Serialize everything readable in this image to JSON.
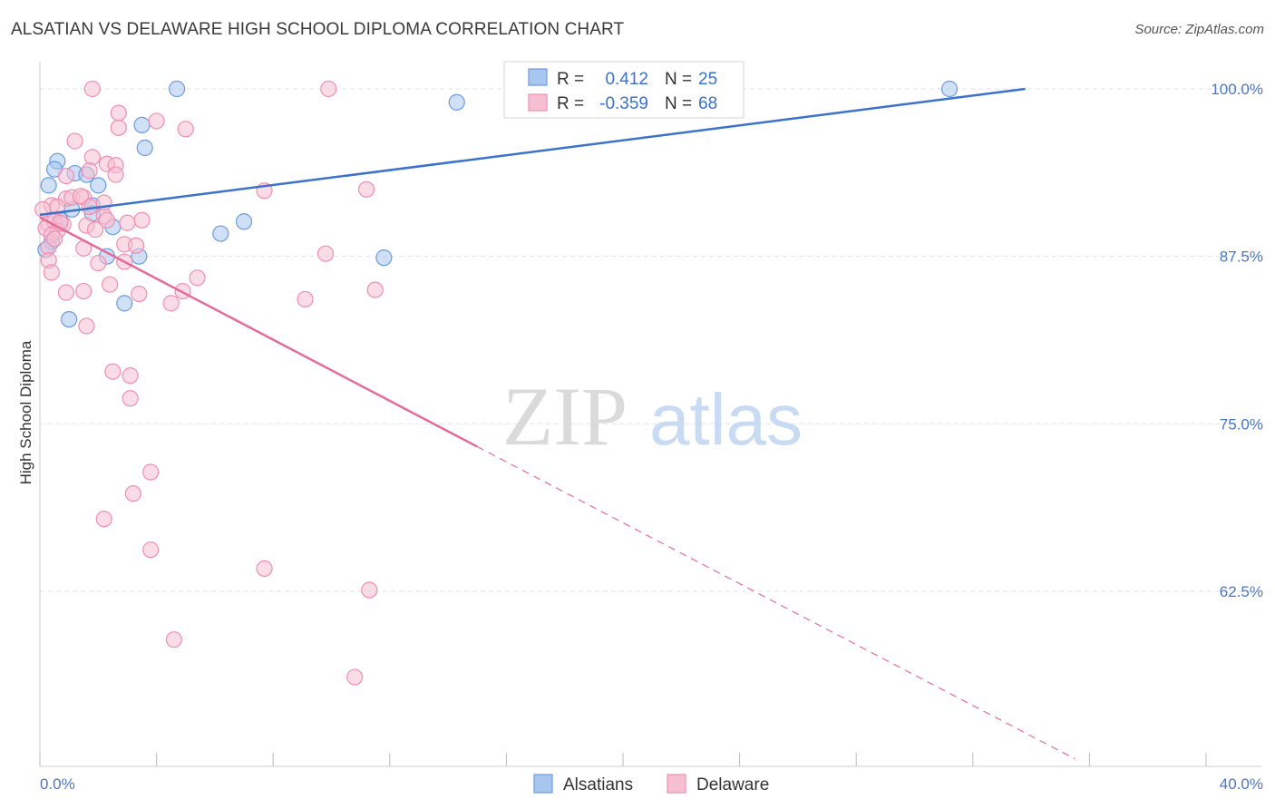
{
  "header": {
    "title": "ALSATIAN VS DELAWARE HIGH SCHOOL DIPLOMA CORRELATION CHART",
    "source": "Source: ZipAtlas.com"
  },
  "watermark": {
    "zip": "ZIP",
    "atlas": "atlas"
  },
  "colors": {
    "blue_fill": "#a9c6ef",
    "blue_stroke": "#6b9be0",
    "blue_line": "#3a72cc",
    "pink_fill": "#f6bfd1",
    "pink_stroke": "#ef8fb0",
    "pink_line": "#e56b9a",
    "tick_text": "#4a76c6",
    "grid": "#e3e3e3"
  },
  "legend": {
    "rows": [
      {
        "r_label": "R =",
        "r_value": "0.412",
        "n_label": "N =",
        "n_value": "25",
        "series": "blue"
      },
      {
        "r_label": "R =",
        "r_value": "-0.359",
        "n_label": "N =",
        "n_value": "68",
        "series": "pink"
      }
    ]
  },
  "chart_data": {
    "type": "scatter",
    "title": "ALSATIAN VS DELAWARE HIGH SCHOOL DIPLOMA CORRELATION CHART",
    "xlabel": "",
    "ylabel": "High School Diploma",
    "xlim": [
      0,
      40
    ],
    "ylim": [
      50,
      101
    ],
    "x_tick_labels": [
      "0.0%",
      "40.0%"
    ],
    "y_ticks": [
      {
        "value": 100,
        "label": "100.0%"
      },
      {
        "value": 87.5,
        "label": "87.5%"
      },
      {
        "value": 75,
        "label": "75.0%"
      },
      {
        "value": 62.5,
        "label": "62.5%"
      }
    ],
    "grid": true,
    "legend_placement": "top-center",
    "series": [
      {
        "name": "Alsatians",
        "color": "blue",
        "points": [
          [
            0.3,
            92.8
          ],
          [
            0.6,
            94.6
          ],
          [
            0.5,
            94.0
          ],
          [
            0.7,
            90.2
          ],
          [
            0.4,
            88.6
          ],
          [
            1.2,
            93.7
          ],
          [
            1.6,
            93.6
          ],
          [
            2.0,
            92.8
          ],
          [
            1.8,
            91.3
          ],
          [
            1.8,
            90.7
          ],
          [
            2.5,
            89.7
          ],
          [
            2.3,
            87.5
          ],
          [
            3.6,
            95.6
          ],
          [
            3.5,
            97.3
          ],
          [
            3.4,
            87.5
          ],
          [
            2.9,
            84.0
          ],
          [
            1.0,
            82.8
          ],
          [
            4.7,
            100.0
          ],
          [
            6.2,
            89.2
          ],
          [
            7.0,
            90.1
          ],
          [
            11.8,
            87.4
          ],
          [
            14.3,
            99.0
          ],
          [
            31.2,
            100.0
          ],
          [
            0.2,
            88.0
          ],
          [
            1.1,
            91.0
          ]
        ],
        "trend": {
          "x": [
            0,
            33.8
          ],
          "y": [
            90.6,
            100.0
          ]
        }
      },
      {
        "name": "Delaware",
        "color": "pink",
        "points": [
          [
            1.8,
            100.0
          ],
          [
            9.9,
            100.0
          ],
          [
            2.7,
            98.2
          ],
          [
            4.0,
            97.6
          ],
          [
            2.7,
            97.1
          ],
          [
            5.0,
            97.0
          ],
          [
            1.2,
            96.1
          ],
          [
            1.8,
            94.9
          ],
          [
            2.3,
            94.4
          ],
          [
            2.6,
            94.3
          ],
          [
            0.9,
            93.5
          ],
          [
            1.7,
            93.9
          ],
          [
            2.6,
            93.6
          ],
          [
            7.7,
            92.4
          ],
          [
            11.2,
            92.5
          ],
          [
            0.4,
            91.3
          ],
          [
            0.9,
            91.8
          ],
          [
            1.1,
            91.9
          ],
          [
            1.5,
            91.9
          ],
          [
            1.7,
            91.2
          ],
          [
            0.6,
            91.2
          ],
          [
            2.2,
            90.5
          ],
          [
            2.3,
            90.2
          ],
          [
            3.5,
            90.2
          ],
          [
            0.3,
            89.9
          ],
          [
            0.5,
            90.1
          ],
          [
            0.8,
            89.9
          ],
          [
            1.6,
            89.8
          ],
          [
            0.2,
            89.6
          ],
          [
            0.6,
            89.4
          ],
          [
            0.4,
            89.1
          ],
          [
            0.3,
            88.2
          ],
          [
            1.5,
            88.1
          ],
          [
            2.9,
            88.4
          ],
          [
            3.3,
            88.3
          ],
          [
            9.8,
            87.7
          ],
          [
            0.3,
            87.2
          ],
          [
            0.4,
            86.3
          ],
          [
            2.0,
            87.0
          ],
          [
            2.9,
            87.1
          ],
          [
            5.4,
            85.9
          ],
          [
            2.4,
            85.4
          ],
          [
            1.5,
            84.9
          ],
          [
            0.9,
            84.8
          ],
          [
            3.4,
            84.7
          ],
          [
            4.9,
            84.9
          ],
          [
            11.5,
            85.0
          ],
          [
            4.5,
            84.0
          ],
          [
            9.1,
            84.3
          ],
          [
            1.6,
            82.3
          ],
          [
            2.5,
            78.9
          ],
          [
            3.1,
            78.6
          ],
          [
            3.1,
            76.9
          ],
          [
            3.8,
            71.4
          ],
          [
            3.2,
            69.8
          ],
          [
            2.2,
            67.9
          ],
          [
            3.8,
            65.6
          ],
          [
            7.7,
            64.2
          ],
          [
            11.3,
            62.6
          ],
          [
            4.6,
            58.9
          ],
          [
            10.8,
            56.1
          ],
          [
            0.1,
            91.0
          ],
          [
            0.7,
            90.0
          ],
          [
            2.2,
            91.5
          ],
          [
            1.4,
            92.0
          ],
          [
            3.0,
            90.0
          ],
          [
            0.5,
            88.8
          ],
          [
            1.9,
            89.5
          ]
        ],
        "trend": {
          "x": [
            0,
            15.0
          ],
          "y": [
            90.4,
            73.3
          ]
        },
        "trend_dashed": {
          "x": [
            15.0,
            35.5
          ],
          "y": [
            73.3,
            50.0
          ]
        }
      }
    ]
  },
  "bottom_legend": {
    "items": [
      {
        "label": "Alsatians",
        "series": "blue"
      },
      {
        "label": "Delaware",
        "series": "pink"
      }
    ]
  }
}
